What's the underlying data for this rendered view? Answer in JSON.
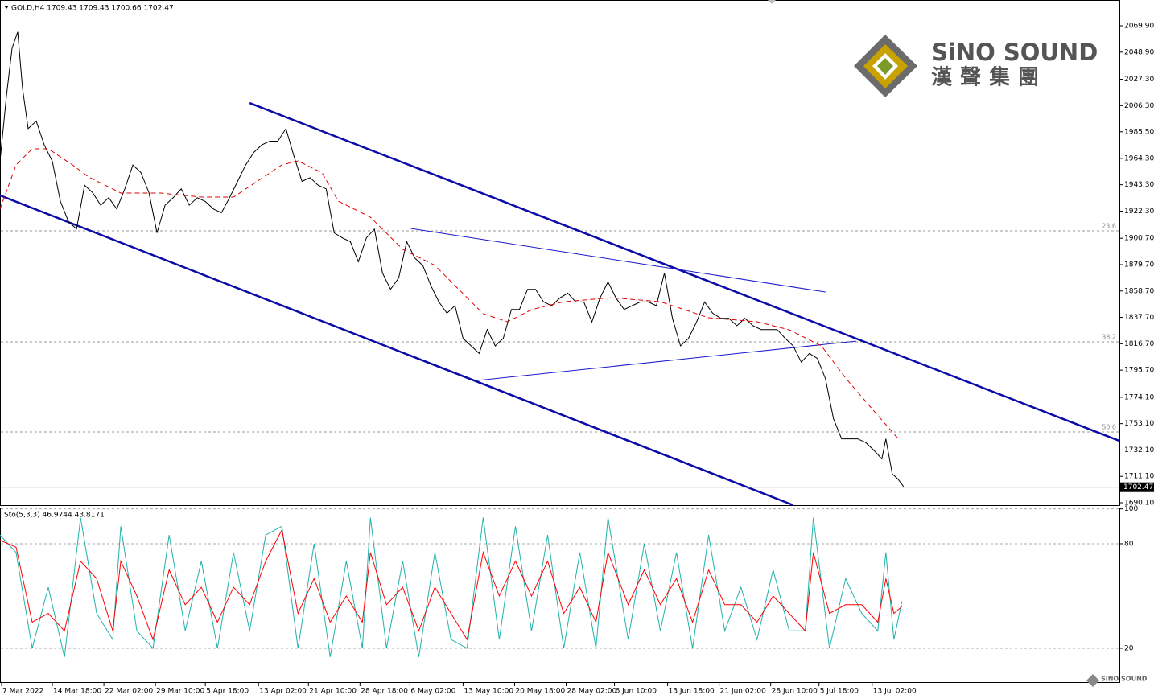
{
  "chart_data": [
    {
      "type": "line",
      "title": "GOLD,H4  1709.43 1709.43 1700.66 1702.47",
      "ylim": [
        1688.2,
        2090.4
      ],
      "yticks": [
        {
          "value": 2069.9,
          "label": "2069.90"
        },
        {
          "value": 2048.9,
          "label": "2048.90"
        },
        {
          "value": 2027.3,
          "label": "2027.30"
        },
        {
          "value": 2006.3,
          "label": "2006.30"
        },
        {
          "value": 1985.5,
          "label": "1985.50"
        },
        {
          "value": 1964.3,
          "label": "1964.30"
        },
        {
          "value": 1943.3,
          "label": "1943.30"
        },
        {
          "value": 1922.3,
          "label": "1922.30"
        },
        {
          "value": 1900.7,
          "label": "1900.70"
        },
        {
          "value": 1879.7,
          "label": "1879.70"
        },
        {
          "value": 1858.7,
          "label": "1858.70"
        },
        {
          "value": 1837.7,
          "label": "1837.70"
        },
        {
          "value": 1816.7,
          "label": "1816.70"
        },
        {
          "value": 1795.7,
          "label": "1795.70"
        },
        {
          "value": 1774.1,
          "label": "1774.10"
        },
        {
          "value": 1753.1,
          "label": "1753.10"
        },
        {
          "value": 1732.1,
          "label": "1732.10"
        },
        {
          "value": 1711.1,
          "label": "1711.10"
        },
        {
          "value": 1690.1,
          "label": "1690.10"
        }
      ],
      "grid": false,
      "last": 1702.47,
      "levels": [
        {
          "label": "23.6",
          "value": 1906.6
        },
        {
          "label": "38.2",
          "value": 1818.2
        },
        {
          "label": "50.0",
          "value": 1746.5
        }
      ],
      "series": [
        {
          "color": "#000000",
          "dash": false,
          "x": [
            0,
            4,
            7.5,
            11,
            14,
            17.5,
            22.5,
            27.5,
            32.5,
            37.5,
            42.5,
            47.5,
            52.5,
            57.5,
            62.5,
            67.5,
            72.5,
            77.5,
            82.5,
            87.5,
            92.5,
            97.5,
            102.5,
            107.5,
            112.5,
            117.5,
            122.5,
            127.5,
            132.5,
            137.5,
            142.5,
            147.5,
            152.5,
            157.5,
            162.5,
            167.5,
            172.5,
            177.5,
            182.5,
            187.5,
            192.5,
            197.5,
            202.5,
            207.5,
            212.5,
            217.5,
            222.5,
            227.5,
            232.5,
            237.5,
            242.5,
            247.5,
            252.5,
            257.5,
            262.5,
            267.5,
            272.5,
            277.5,
            282.5,
            287.5,
            292.5,
            297.5,
            302.5,
            307.5,
            312.5,
            317.5,
            322.5,
            327.5,
            332.5,
            337.5,
            342.5,
            347.5,
            352.5,
            357.5,
            362.5,
            367.5,
            372.5,
            377.5,
            382.5,
            387.5,
            392.5,
            397.5,
            402.5,
            407.5,
            412.5,
            417.5,
            422.5,
            427.5,
            432.5,
            437.5,
            442.5,
            447.5,
            452.5,
            457.5,
            462.5,
            467.5,
            472.5,
            477.5,
            482.5,
            487.5,
            492.5,
            497.5,
            502.5,
            507.5,
            512.5,
            517.5,
            522.5,
            527.5,
            532.5,
            537.5,
            542.5,
            547.5,
            550,
            554,
            557.5,
            561
          ],
          "values": [
            1962,
            2014,
            2052,
            2065,
            2020,
            1988,
            1994,
            1975,
            1962,
            1930,
            1914,
            1908,
            1943,
            1937,
            1927,
            1933,
            1924,
            1940,
            1959,
            1953,
            1937,
            1905,
            1927,
            1933,
            1940,
            1927,
            1933,
            1930,
            1924,
            1921,
            1933,
            1946,
            1959,
            1969,
            1975,
            1978,
            1978,
            1988,
            1966,
            1946,
            1949,
            1943,
            1940,
            1905,
            1901,
            1898,
            1882,
            1901,
            1908,
            1873,
            1860,
            1869,
            1898,
            1885,
            1879,
            1863,
            1850,
            1841,
            1847,
            1821,
            1815,
            1809,
            1828,
            1815,
            1821,
            1844,
            1844,
            1860,
            1860,
            1850,
            1847,
            1853,
            1857,
            1850,
            1850,
            1834,
            1853,
            1866,
            1853,
            1844,
            1847,
            1850,
            1850,
            1847,
            1873,
            1837,
            1815,
            1821,
            1834,
            1850,
            1841,
            1837,
            1837,
            1831,
            1837,
            1831,
            1828,
            1828,
            1828,
            1821,
            1815,
            1802,
            1809,
            1805,
            1789,
            1757,
            1741,
            1741,
            1741,
            1738,
            1732,
            1725,
            1741,
            1713,
            1709,
            1703
          ]
        },
        {
          "color": "#e00000",
          "dash": true,
          "x": [
            0,
            10,
            20,
            30,
            45,
            55,
            75,
            100,
            125,
            145,
            160,
            175,
            185,
            200,
            210,
            230,
            250,
            270,
            285,
            300,
            315,
            330,
            350,
            380,
            410,
            425,
            440,
            470,
            490,
            510,
            525,
            540,
            557.5
          ],
          "values": [
            1923.9,
            1959.1,
            1971.9,
            1971.9,
            1959.1,
            1949.5,
            1936.7,
            1936.7,
            1933.5,
            1933.5,
            1946.3,
            1959.1,
            1962.3,
            1952.7,
            1930.3,
            1917.5,
            1891.9,
            1879.1,
            1859.8,
            1840.6,
            1834.2,
            1843.8,
            1850.2,
            1853.4,
            1850.2,
            1843.8,
            1837.4,
            1834.2,
            1827.8,
            1815.0,
            1789.4,
            1767.0,
            1741.3
          ]
        }
      ],
      "trendlines": [
        {
          "color": "#0a0aa8",
          "width": 2.5,
          "x": [
            155,
            695
          ],
          "values": [
            2008.4,
            1739.4
          ]
        },
        {
          "color": "#0a0aa8",
          "width": 2.5,
          "x": [
            0,
            492.5
          ],
          "values": [
            1934.8,
            1688.2
          ]
        },
        {
          "color": "#1a1acc",
          "width": 1,
          "x": [
            255,
            512.5
          ],
          "values": [
            1908.5,
            1857.9
          ]
        },
        {
          "color": "#1a1acc",
          "width": 1,
          "x": [
            296.5,
            531.5
          ],
          "values": [
            1787.5,
            1818.8
          ]
        }
      ]
    },
    {
      "type": "line",
      "title": "Sto(5,3,3) 46.9744 43.8171",
      "ylim": [
        0.6,
        100.3
      ],
      "yticks": [
        20,
        80,
        100
      ],
      "grid": true,
      "xlim": [
        0,
        695
      ],
      "xticks": [
        {
          "value": 1,
          "label": "7 Mar 2022"
        },
        {
          "value": 32.5,
          "label": "14 Mar 18:00"
        },
        {
          "value": 64.5,
          "label": "22 Mar 02:00"
        },
        {
          "value": 96.5,
          "label": "29 Mar 10:00"
        },
        {
          "value": 127.5,
          "label": "5 Apr 18:00"
        },
        {
          "value": 160.5,
          "label": "13 Apr 02:00"
        },
        {
          "value": 191.5,
          "label": "21 Apr 10:00"
        },
        {
          "value": 223.5,
          "label": "28 Apr 18:00"
        },
        {
          "value": 254.5,
          "label": "6 May 02:00"
        },
        {
          "value": 287.5,
          "label": "13 May 10:00"
        },
        {
          "value": 319.5,
          "label": "20 May 18:00"
        },
        {
          "value": 351.5,
          "label": "28 May 02:00"
        },
        {
          "value": 381.5,
          "label": "6 Jun 10:00"
        },
        {
          "value": 414.5,
          "label": "13 Jun 18:00"
        },
        {
          "value": 446.5,
          "label": "21 Jun 02:00"
        },
        {
          "value": 478.5,
          "label": "28 Jun 10:00"
        },
        {
          "value": 508.5,
          "label": "5 Jul 18:00"
        },
        {
          "value": 541.5,
          "label": "13 Jul 02:00"
        }
      ],
      "series": [
        {
          "color": "#20b2aa",
          "dash": false,
          "x": [
            0,
            10,
            20,
            30,
            40,
            50,
            60,
            70,
            75,
            85,
            95,
            105,
            115,
            125,
            135,
            145,
            155,
            165,
            175,
            185,
            195,
            205,
            215,
            225,
            230,
            240,
            250,
            260,
            270,
            280,
            290,
            300,
            310,
            320,
            330,
            340,
            350,
            360,
            370,
            377.5,
            390,
            400,
            410,
            420,
            430,
            440,
            450,
            460,
            470,
            480,
            490,
            500,
            505,
            515,
            525,
            535,
            545,
            550,
            555,
            560
          ],
          "values": [
            85,
            75,
            20,
            55,
            15,
            95,
            40,
            25,
            90,
            30,
            20,
            85,
            30,
            70,
            20,
            75,
            30,
            85,
            90,
            20,
            80,
            15,
            70,
            20,
            95,
            20,
            70,
            15,
            75,
            25,
            20,
            95,
            25,
            90,
            30,
            85,
            20,
            75,
            20,
            95,
            25,
            80,
            30,
            75,
            20,
            85,
            30,
            55,
            25,
            65,
            30,
            30,
            95,
            20,
            60,
            40,
            30,
            75,
            25,
            47
          ]
        },
        {
          "color": "#ff0000",
          "dash": false,
          "x": [
            0,
            10,
            20,
            30,
            40,
            50,
            60,
            70,
            75,
            85,
            95,
            105,
            115,
            125,
            135,
            145,
            155,
            165,
            175,
            185,
            195,
            205,
            215,
            225,
            230,
            240,
            250,
            260,
            270,
            280,
            290,
            300,
            310,
            320,
            330,
            340,
            350,
            360,
            370,
            377.5,
            390,
            400,
            410,
            420,
            430,
            440,
            450,
            460,
            470,
            480,
            490,
            500,
            505,
            515,
            525,
            535,
            545,
            550,
            555,
            560
          ],
          "values": [
            82,
            78,
            35,
            40,
            30,
            70,
            60,
            30,
            70,
            50,
            25,
            65,
            45,
            55,
            35,
            55,
            45,
            70,
            88,
            40,
            60,
            35,
            50,
            35,
            75,
            45,
            55,
            30,
            55,
            40,
            25,
            75,
            50,
            70,
            50,
            70,
            40,
            55,
            35,
            75,
            45,
            65,
            45,
            60,
            35,
            65,
            45,
            45,
            35,
            50,
            40,
            30,
            75,
            40,
            45,
            45,
            35,
            60,
            40,
            44
          ]
        }
      ]
    }
  ],
  "logo": {
    "name": "SiNO SOUND",
    "chinese": "漢聲集團",
    "small": "SINO SOUND"
  }
}
